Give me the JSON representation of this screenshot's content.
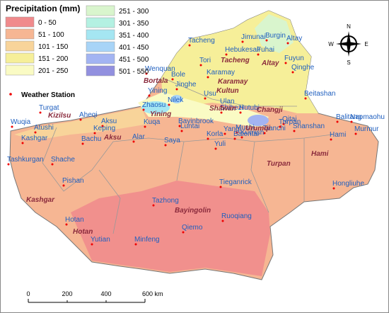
{
  "legend": {
    "title": "Precipitation (mm)",
    "items": [
      {
        "label": "0 - 50",
        "color": "#f08a8c"
      },
      {
        "label": "51 - 100",
        "color": "#f6b693"
      },
      {
        "label": "101 - 150",
        "color": "#f8d49a"
      },
      {
        "label": "151 - 200",
        "color": "#f6ef99"
      },
      {
        "label": "201 - 250",
        "color": "#fafbc4"
      },
      {
        "label": "251 - 300",
        "color": "#d9f5cd"
      },
      {
        "label": "301 - 350",
        "color": "#b4f1e2"
      },
      {
        "label": "351 - 400",
        "color": "#a5e6f2"
      },
      {
        "label": "401 - 450",
        "color": "#a8d4f7"
      },
      {
        "label": "451 - 500",
        "color": "#a3b4f2"
      },
      {
        "label": "501 - 550",
        "color": "#9290df"
      }
    ],
    "station_label": "Weather Station"
  },
  "stations": [
    "Tacheng",
    "Jimunai",
    "Burgin",
    "Altay",
    "Hebukesair",
    "Fuhai",
    "Fuyun",
    "Qinghe",
    "Tori",
    "Karamay",
    "Wenquan",
    "Bole",
    "Jinghe",
    "Yining",
    "Nilek",
    "Usu",
    "Ulan",
    "Shihezi",
    "Hutubi",
    "Beitashan",
    "Zhaosu",
    "Bayinbrook",
    "Mushi",
    "Qitai",
    "Tianchi",
    "Balentai",
    "Turgat",
    "Aheqi",
    "Aksu",
    "Kuqa",
    "Luntai",
    "Wuqia",
    "Atushi",
    "Keping",
    "Kashgar",
    "Bachu",
    "Alar",
    "Saya",
    "Korla",
    "Yanqi",
    "Kumish",
    "Turpan",
    "Shanshan",
    "Balitang",
    "Naomaohu",
    "Murmur",
    "Hami",
    "Yuli",
    "Tashkurgan",
    "Shache",
    "Pishan",
    "Tieganrick",
    "Hongliuhe",
    "Tazhong",
    "Hotan",
    "Ruoqiang",
    "Qiemo",
    "Yutian",
    "Minfeng"
  ],
  "regions": [
    "Tacheng",
    "Altay",
    "Karamay",
    "Bortala",
    "Kultun",
    "Shawan",
    "Changji",
    "Yining",
    "Urumqi",
    "Kizilsu",
    "Aksu",
    "Hami",
    "Turpan",
    "Kashgar",
    "Bayingolin",
    "Hotan"
  ],
  "scale": {
    "labels": [
      "0",
      "200",
      "400",
      "600 km"
    ]
  },
  "compass": {
    "n": "N",
    "e": "E",
    "s": "S",
    "w": "W"
  }
}
